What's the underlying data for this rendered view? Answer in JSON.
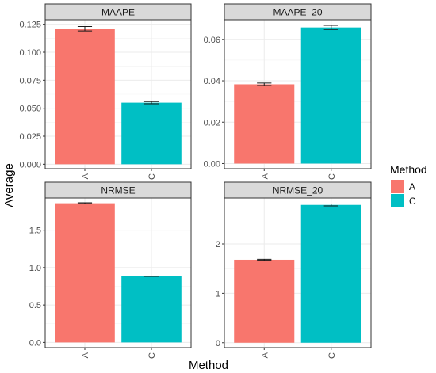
{
  "chart_data": {
    "type": "bar",
    "xlabel": "Method",
    "ylabel": "Average",
    "legend": {
      "title": "Method",
      "position": "right",
      "entries": [
        {
          "label": "A",
          "color": "#F8766D"
        },
        {
          "label": "C",
          "color": "#00BFC4"
        }
      ]
    },
    "grid": true,
    "panels": [
      {
        "title": "MAAPE",
        "categories": [
          "A",
          "C"
        ],
        "values": [
          0.121,
          0.055
        ],
        "errors": [
          0.002,
          0.001
        ],
        "ylim": [
          -0.004,
          0.129
        ],
        "yticks": [
          0.0,
          0.025,
          0.05,
          0.075,
          0.1,
          0.125
        ],
        "ytick_labels": [
          "0.000",
          "0.025",
          "0.050",
          "0.075",
          "0.100",
          "0.125"
        ]
      },
      {
        "title": "MAAPE_20",
        "categories": [
          "A",
          "C"
        ],
        "values": [
          0.0383,
          0.0658
        ],
        "errors": [
          0.0006,
          0.001
        ],
        "ylim": [
          -0.0025,
          0.0695
        ],
        "yticks": [
          0.0,
          0.02,
          0.04,
          0.06
        ],
        "ytick_labels": [
          "0.00",
          "0.02",
          "0.04",
          "0.06"
        ]
      },
      {
        "title": "NRMSE",
        "categories": [
          "A",
          "C"
        ],
        "values": [
          1.86,
          0.885
        ],
        "errors": [
          0.007,
          0.003
        ],
        "ylim": [
          -0.07,
          1.93
        ],
        "yticks": [
          0.0,
          0.5,
          1.0,
          1.5
        ],
        "ytick_labels": [
          "0.0",
          "0.5",
          "1.0",
          "1.5"
        ]
      },
      {
        "title": "NRMSE_20",
        "categories": [
          "A",
          "C"
        ],
        "values": [
          1.68,
          2.79
        ],
        "errors": [
          0.01,
          0.02
        ],
        "ylim": [
          -0.1,
          2.93
        ],
        "yticks": [
          0,
          1,
          2
        ],
        "ytick_labels": [
          "0",
          "1",
          "2"
        ]
      }
    ]
  }
}
